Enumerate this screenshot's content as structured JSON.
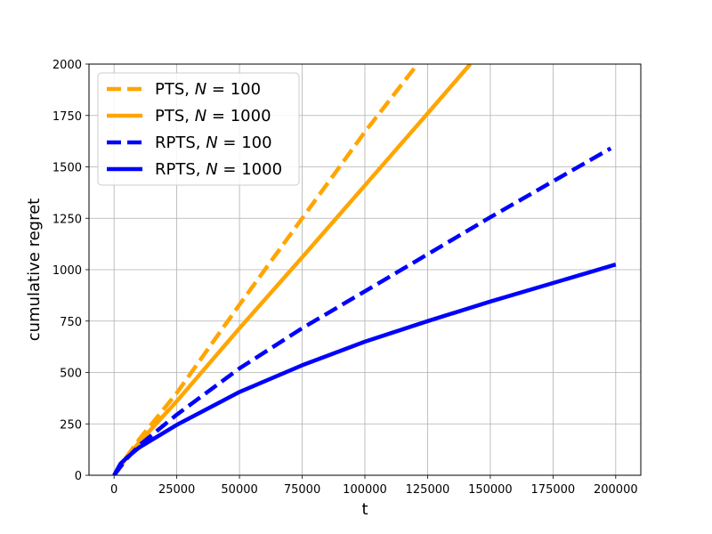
{
  "chart_data": {
    "type": "line",
    "title": "",
    "xlabel": "t",
    "ylabel": "cumulative regret",
    "xlim": [
      -10000,
      210000
    ],
    "ylim": [
      0,
      2000
    ],
    "grid": true,
    "legend_position": "top-left",
    "xticks": [
      0,
      25000,
      50000,
      75000,
      100000,
      125000,
      150000,
      175000,
      200000
    ],
    "xtick_labels": [
      "0",
      "25000",
      "50000",
      "75000",
      "100000",
      "125000",
      "150000",
      "175000",
      "200000"
    ],
    "yticks": [
      0,
      250,
      500,
      750,
      1000,
      1250,
      1500,
      1750,
      2000
    ],
    "ytick_labels": [
      "0",
      "250",
      "500",
      "750",
      "1000",
      "1250",
      "1500",
      "1750",
      "2000"
    ],
    "series": [
      {
        "name": "PTS, N = 100",
        "legend_prefix": "PTS, ",
        "legend_var": "N",
        "legend_suffix": " = 100",
        "color": "#ffa500",
        "dashed": true,
        "x": [
          0,
          5000,
          10000,
          25000,
          50000,
          75000,
          100000,
          121000
        ],
        "y": [
          0,
          90,
          175,
          400,
          830,
          1250,
          1670,
          2000
        ]
      },
      {
        "name": "PTS, N = 1000",
        "legend_prefix": "PTS, ",
        "legend_var": "N",
        "legend_suffix": " = 1000",
        "color": "#ffa500",
        "dashed": false,
        "x": [
          0,
          5000,
          10000,
          25000,
          50000,
          75000,
          100000,
          125000,
          142000
        ],
        "y": [
          0,
          85,
          160,
          360,
          715,
          1060,
          1410,
          1760,
          2000
        ]
      },
      {
        "name": "RPTS, N = 100",
        "legend_prefix": "RPTS, ",
        "legend_var": "N",
        "legend_suffix": " = 100",
        "color": "#0000ff",
        "dashed": true,
        "x": [
          0,
          5000,
          10000,
          25000,
          50000,
          75000,
          100000,
          125000,
          150000,
          175000,
          198000
        ],
        "y": [
          0,
          80,
          145,
          295,
          520,
          715,
          895,
          1075,
          1255,
          1430,
          1590
        ]
      },
      {
        "name": "RPTS, N = 1000",
        "legend_prefix": "RPTS, ",
        "legend_var": "N",
        "legend_suffix": " = 1000",
        "color": "#0000ff",
        "dashed": false,
        "x": [
          0,
          2500,
          5000,
          10000,
          25000,
          50000,
          75000,
          100000,
          125000,
          150000,
          175000,
          200000
        ],
        "y": [
          0,
          55,
          85,
          135,
          245,
          405,
          535,
          650,
          750,
          845,
          935,
          1025
        ]
      }
    ]
  }
}
